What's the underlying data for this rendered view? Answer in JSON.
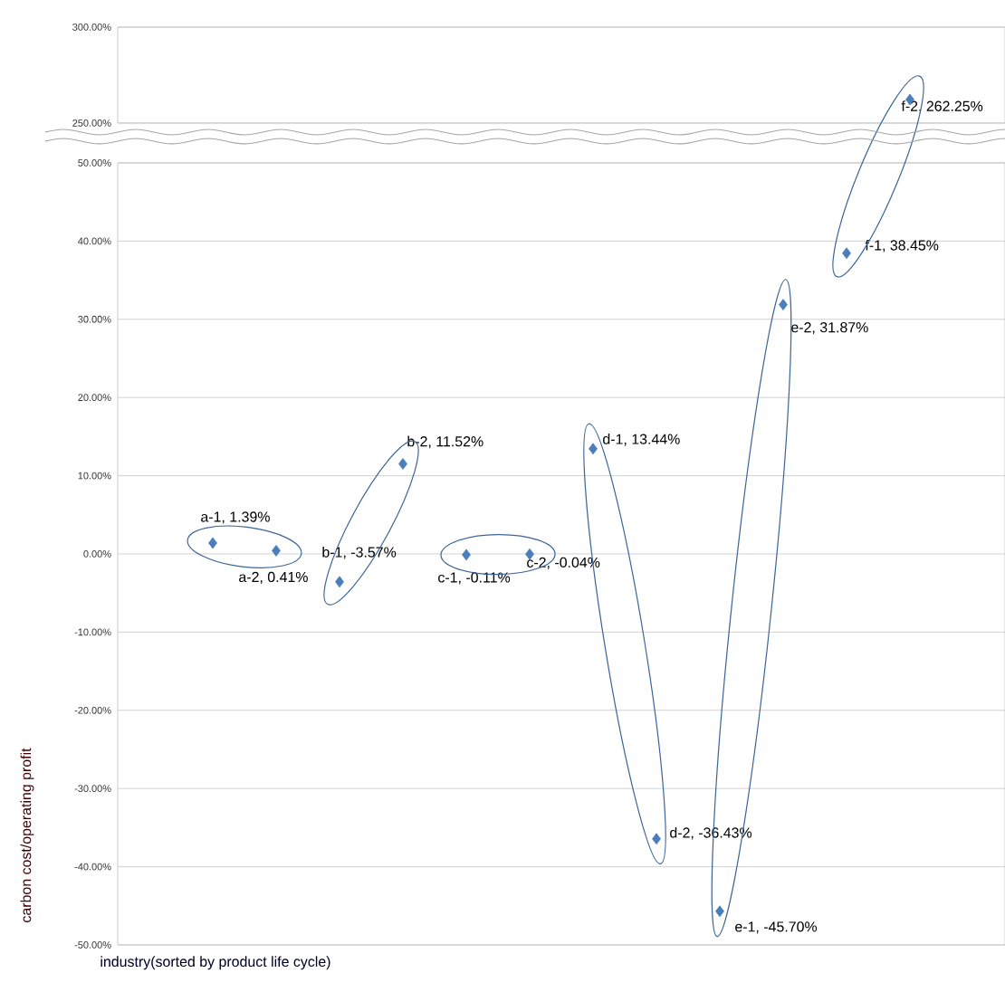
{
  "chart_data": [
    {
      "type": "scatter",
      "categories": [
        null,
        null,
        null,
        null,
        null,
        null,
        null,
        null,
        null,
        null,
        null,
        null,
        null,
        null
      ],
      "values": [
        null,
        null,
        null,
        null,
        null,
        null,
        null,
        null,
        null,
        null,
        null,
        null,
        262.25,
        null
      ],
      "value_labels": [
        null,
        null,
        null,
        null,
        null,
        null,
        null,
        null,
        null,
        null,
        null,
        null,
        "f-2, 262.25%",
        null
      ],
      "color": "#4a7ebb",
      "marker": "diamond",
      "grid": "y",
      "tick_labels": "y",
      "ylim": [
        250,
        300
      ],
      "yticks": [
        {
          "value": 250,
          "label": "250.00%"
        },
        {
          "value": 300,
          "label": "300.00%"
        }
      ]
    },
    {
      "type": "scatter",
      "categories": [
        null,
        null,
        null,
        null,
        null,
        null,
        null,
        null,
        null,
        null,
        null,
        null,
        null,
        null
      ],
      "values": [
        null,
        1.39,
        0.41,
        -3.57,
        11.52,
        -0.11,
        -0.04,
        13.44,
        -36.43,
        -45.7,
        31.87,
        38.45,
        null,
        null
      ],
      "value_labels": [
        null,
        "a-1, 1.39%",
        "a-2, 0.41%",
        "b-1, -3.57%",
        "b-2, 11.52%",
        "c-1, -0.11%",
        "c-2, -0.04%",
        "d-1, 13.44%",
        "d-2, -36.43%",
        "e-1, -45.70%",
        "e-2, 31.87%",
        "f-1, 38.45%",
        null,
        null
      ],
      "color": "#4a7ebb",
      "marker": "diamond",
      "grid": "y",
      "tick_labels": "y",
      "xlabel": "industry(sorted by product life cycle)",
      "ylabel": "carbon cost/operating profit",
      "ylim": [
        -50,
        50
      ],
      "yticks": [
        {
          "value": -50,
          "label": "-50.00%"
        },
        {
          "value": -40,
          "label": "-40.00%"
        },
        {
          "value": -30,
          "label": "-30.00%"
        },
        {
          "value": -20,
          "label": "-20.00%"
        },
        {
          "value": -10,
          "label": "-10.00%"
        },
        {
          "value": 0,
          "label": "0.00%"
        },
        {
          "value": 10,
          "label": "10.00%"
        },
        {
          "value": 20,
          "label": "20.00%"
        },
        {
          "value": 30,
          "label": "30.00%"
        },
        {
          "value": 40,
          "label": "40.00%"
        },
        {
          "value": 50,
          "label": "50.00%"
        }
      ]
    }
  ]
}
